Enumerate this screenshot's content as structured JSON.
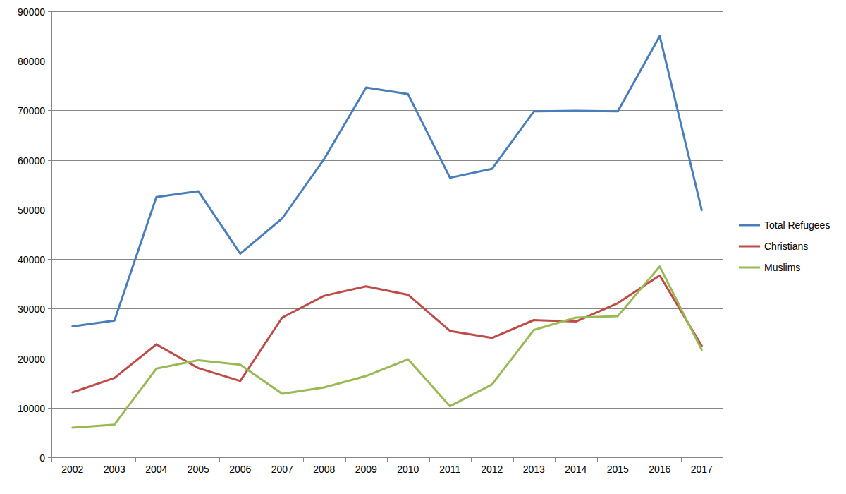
{
  "chart_data": {
    "type": "line",
    "categories": [
      "2002",
      "2003",
      "2004",
      "2005",
      "2006",
      "2007",
      "2008",
      "2009",
      "2010",
      "2011",
      "2012",
      "2013",
      "2014",
      "2015",
      "2016",
      "2017"
    ],
    "series": [
      {
        "name": "Total Refugees",
        "color": "#4a7ebb",
        "values": [
          26400,
          27600,
          52500,
          53700,
          41100,
          48200,
          60200,
          74600,
          73300,
          56400,
          58200,
          69800,
          69900,
          69800,
          85000,
          49900
        ]
      },
      {
        "name": "Christians",
        "color": "#be4b48",
        "values": [
          13100,
          16000,
          22800,
          18000,
          15400,
          28200,
          32600,
          34500,
          32800,
          25500,
          24100,
          27700,
          27400,
          31100,
          36700,
          22500
        ]
      },
      {
        "name": "Muslims",
        "color": "#98b954",
        "values": [
          6000,
          6600,
          17900,
          19600,
          18700,
          12800,
          14100,
          16400,
          19800,
          10300,
          14700,
          25700,
          28200,
          28500,
          38500,
          21700
        ]
      }
    ],
    "ylim": [
      0,
      90000
    ],
    "yticks": [
      0,
      10000,
      20000,
      30000,
      40000,
      50000,
      60000,
      70000,
      80000,
      90000
    ],
    "grid": true,
    "legend": "right"
  }
}
